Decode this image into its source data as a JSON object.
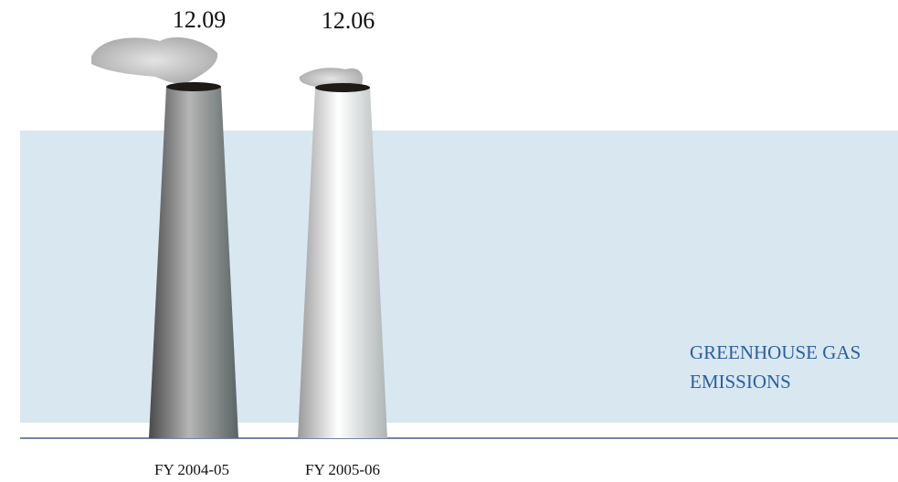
{
  "chart_data": {
    "type": "bar",
    "title": "GREENHOUSE GAS EMISSIONS",
    "categories": [
      "FY 2004-05",
      "FY 2005-06"
    ],
    "values": [
      12.09,
      12.06
    ]
  }
}
